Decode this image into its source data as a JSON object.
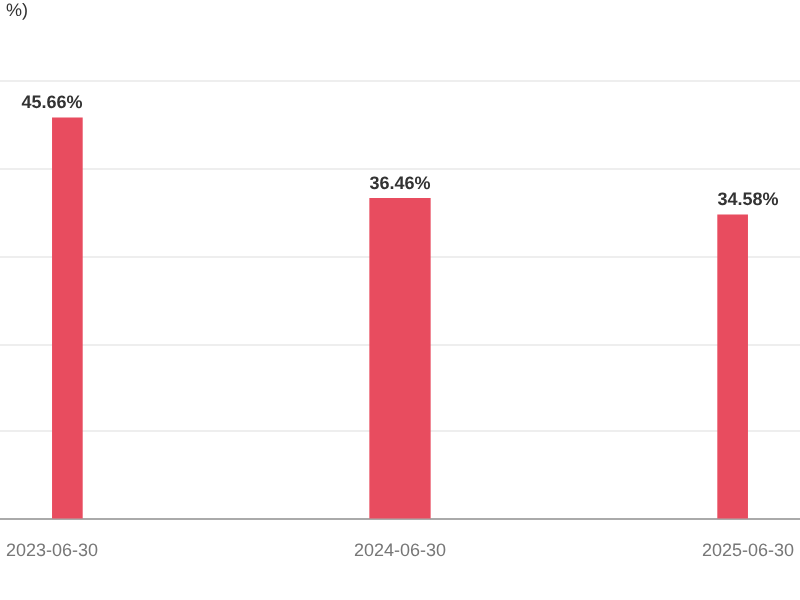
{
  "chart_data": {
    "type": "bar",
    "annotations": [
      "%)"
    ],
    "categories": [
      "2023-06-30",
      "2024-06-30",
      "2025-06-30"
    ],
    "values": [
      45.66,
      36.46,
      34.58
    ],
    "value_labels": [
      "45.66%",
      "36.46%",
      "34.58%"
    ],
    "color": "#e84c5f",
    "grid": "y",
    "tick_labels": "x",
    "legend": false
  }
}
